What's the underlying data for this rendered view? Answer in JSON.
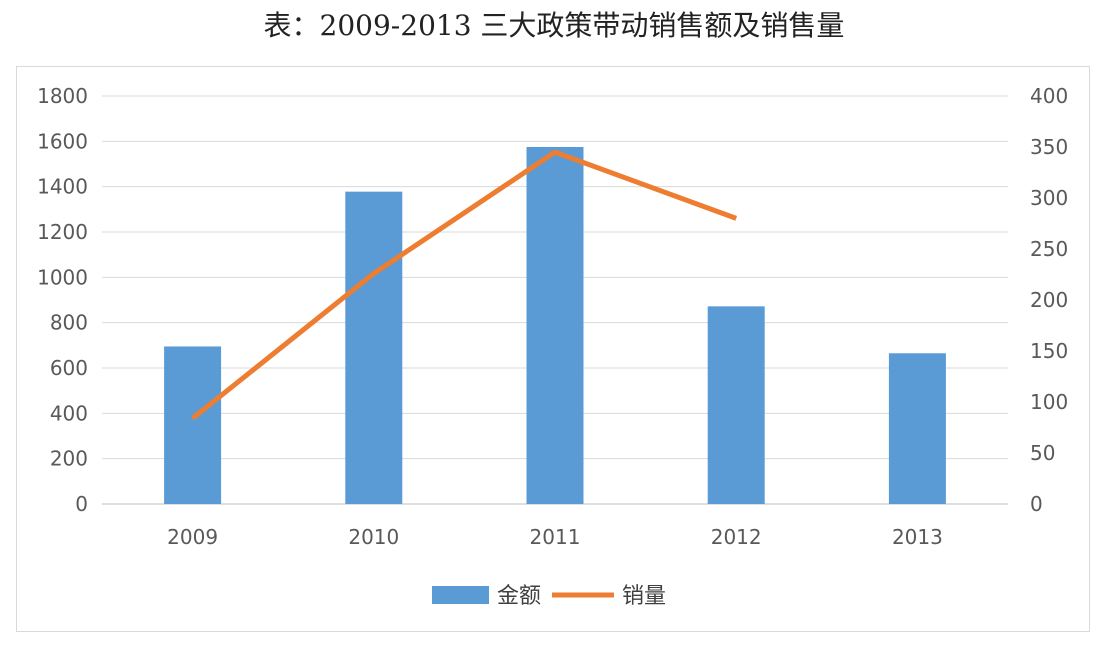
{
  "title": "表：2009-2013 三大政策带动销售额及销售量",
  "chart_data": {
    "type": "bar",
    "title": "表：2009-2013 三大政策带动销售额及销售量",
    "categories": [
      "2009",
      "2010",
      "2011",
      "2012",
      "2013"
    ],
    "series": [
      {
        "name": "金额",
        "type": "bar",
        "axis": "left",
        "color": "#5B9BD5",
        "values": [
          695,
          1378,
          1575,
          872,
          665
        ]
      },
      {
        "name": "销量",
        "type": "line",
        "axis": "right",
        "color": "#ED7D31",
        "values": [
          84,
          226,
          345,
          280,
          null
        ]
      }
    ],
    "y_left": {
      "ylim": [
        0,
        1800
      ],
      "ticks": [
        "0",
        "200",
        "400",
        "600",
        "800",
        "1000",
        "1200",
        "1400",
        "1600",
        "1800"
      ]
    },
    "y_right": {
      "ylim": [
        0,
        400
      ],
      "ticks": [
        "0",
        "50",
        "100",
        "150",
        "200",
        "250",
        "300",
        "350",
        "400"
      ]
    },
    "xlabel": "",
    "ylabel": "",
    "grid": true,
    "legend": "bottom-center"
  }
}
